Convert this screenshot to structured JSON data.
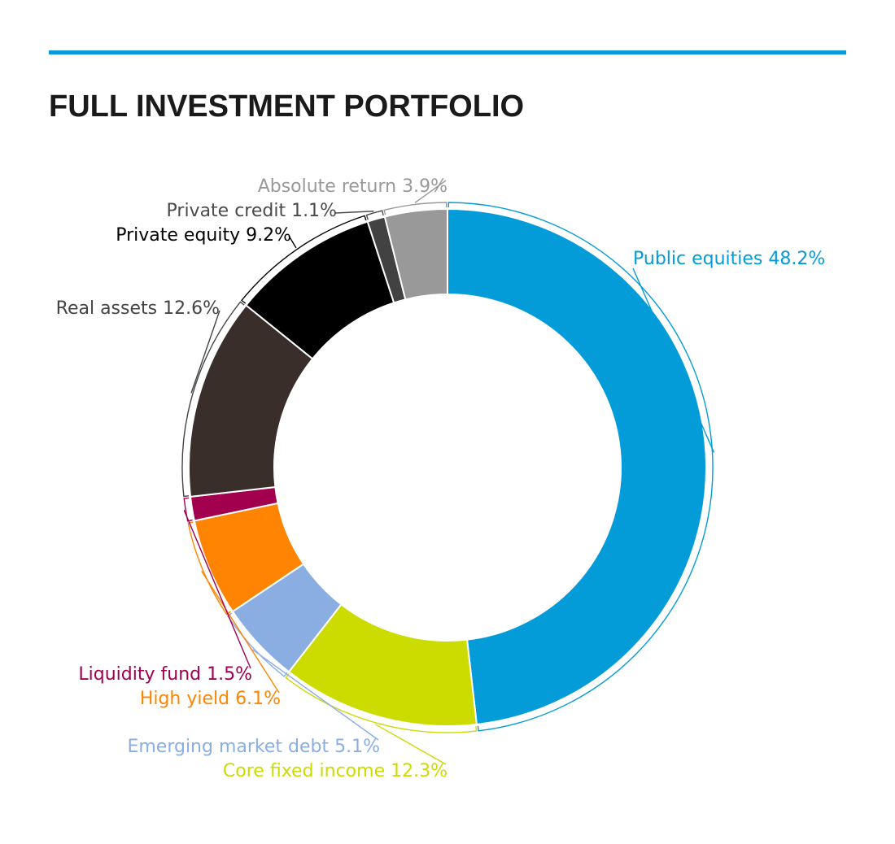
{
  "header": {
    "title": "FULL INVESTMENT PORTFOLIO",
    "rule_color": "#0a9ad8"
  },
  "chart_data": {
    "type": "pie",
    "variant": "donut",
    "title": "FULL INVESTMENT PORTFOLIO",
    "unit": "%",
    "start": "12 o'clock",
    "direction": "clockwise",
    "slices": [
      {
        "label": "Public equities",
        "value": 48.2,
        "display": "Public equities 48.2%",
        "color": "#039bd8"
      },
      {
        "label": "Core fixed income",
        "value": 12.3,
        "display": "Core fixed income 12.3%",
        "color": "#ccdb00"
      },
      {
        "label": "Emerging market debt",
        "value": 5.1,
        "display": "Emerging market debt 5.1%",
        "color": "#8aaee2"
      },
      {
        "label": "High yield",
        "value": 6.1,
        "display": "High yield 6.1%",
        "color": "#fe8402"
      },
      {
        "label": "Liquidity fund",
        "value": 1.5,
        "display": "Liquidity fund 1.5%",
        "color": "#a2004f"
      },
      {
        "label": "Real assets",
        "value": 12.6,
        "display": "Real assets 12.6%",
        "color": "#3a2e2b",
        "text_color": "#444444"
      },
      {
        "label": "Private equity",
        "value": 9.2,
        "display": "Private equity 9.2%",
        "color": "#000000"
      },
      {
        "label": "Private credit",
        "value": 1.1,
        "display": "Private credit 1.1%",
        "color": "#424242",
        "text_color": "#4a4a4a"
      },
      {
        "label": "Absolute return",
        "value": 3.9,
        "display": "Absolute return 3.9%",
        "color": "#999999"
      }
    ]
  }
}
